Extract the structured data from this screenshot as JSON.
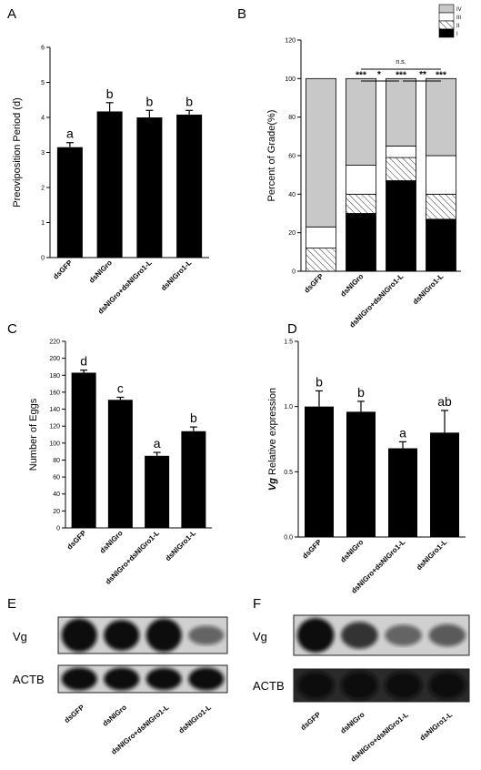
{
  "chart_data": [
    {
      "panel": "A",
      "type": "bar",
      "ylabel": "Preoviposition Period (d)",
      "ylim": [
        0,
        6
      ],
      "yticks": [
        "0",
        "1",
        "2",
        "3",
        "4",
        "5",
        "6"
      ],
      "categories": [
        "dsGFP",
        "dsNlGro",
        "dsNlGro+dsNlGro1-L",
        "dsNlGro1-L"
      ],
      "values": [
        3.15,
        4.17,
        4.0,
        4.08
      ],
      "errors": [
        0.13,
        0.25,
        0.2,
        0.12
      ],
      "letters": [
        "a",
        "b",
        "b",
        "b"
      ],
      "color": "#000000"
    },
    {
      "panel": "B",
      "type": "bar",
      "stacked": true,
      "ylabel": "Percent of Grade(%)",
      "ylim": [
        0,
        120
      ],
      "yticks": [
        "0",
        "20",
        "40",
        "60",
        "80",
        "100",
        "120"
      ],
      "categories": [
        "dsGFP",
        "dsNlGro",
        "dsNlGro+dsNlGro1-L",
        "dsNlGro1-L"
      ],
      "series": [
        {
          "name": "I",
          "values": [
            0,
            30,
            47,
            27
          ],
          "fill": "#000000"
        },
        {
          "name": "II",
          "values": [
            12,
            10,
            12,
            13
          ],
          "fill": "hatch"
        },
        {
          "name": "III",
          "values": [
            11,
            15,
            6,
            20
          ],
          "fill": "#ffffff"
        },
        {
          "name": "IV",
          "values": [
            77,
            45,
            35,
            40
          ],
          "fill": "#c8c8c8"
        }
      ],
      "legend": [
        "IV",
        "III",
        "II",
        "I"
      ],
      "stars": [
        "***",
        "***",
        "***"
      ],
      "brackets": [
        {
          "label": "n.s.",
          "from": 1,
          "to": 3
        },
        {
          "label": "*",
          "from": 1,
          "to": 2
        },
        {
          "label": "**",
          "from": 2,
          "to": 3
        }
      ]
    },
    {
      "panel": "C",
      "type": "bar",
      "ylabel": "Number of Eggs",
      "ylim": [
        0,
        220
      ],
      "yticks": [
        "0",
        "20",
        "40",
        "60",
        "80",
        "100",
        "120",
        "140",
        "160",
        "180",
        "200",
        "220"
      ],
      "categories": [
        "dsGFP",
        "dsNlGro",
        "dsNlGro+dsNlGro1-L",
        "dsNlGro1-L"
      ],
      "values": [
        183,
        151,
        85,
        114
      ],
      "errors": [
        3,
        3,
        4,
        5
      ],
      "letters": [
        "d",
        "c",
        "a",
        "b"
      ],
      "color": "#000000"
    },
    {
      "panel": "D",
      "type": "bar",
      "ylabel_italic": "Vg",
      "ylabel": " Relative expression",
      "ylim": [
        0,
        1.5
      ],
      "yticks": [
        "0.0",
        "0.5",
        "1.0",
        "1.5"
      ],
      "categories": [
        "dsGFP",
        "dsNlGro",
        "dsNlGro+dsNlGro1-L",
        "dsNlGro1-L"
      ],
      "values": [
        1.0,
        0.96,
        0.68,
        0.8
      ],
      "errors": [
        0.12,
        0.08,
        0.05,
        0.17
      ],
      "letters": [
        "b",
        "b",
        "a",
        "ab"
      ],
      "color": "#000000"
    }
  ],
  "blots": [
    {
      "panel": "E",
      "rows": [
        "Vg",
        "ACTB"
      ],
      "lanes": [
        "dsGFP",
        "dsNlGro",
        "dsNlGro+dsNlGro1-L",
        "dsNlGro1-L"
      ],
      "intensity": {
        "Vg": [
          1.0,
          0.85,
          1.0,
          0.3
        ],
        "ACTB": [
          0.85,
          0.85,
          0.8,
          0.85
        ]
      }
    },
    {
      "panel": "F",
      "rows": [
        "Vg",
        "ACTB"
      ],
      "lanes": [
        "dsGFP",
        "dsNlGro",
        "dsNlGro+dsNlGro1-L",
        "dsNlGro1-L"
      ],
      "intensity": {
        "Vg": [
          0.9,
          0.55,
          0.3,
          0.35
        ],
        "ACTB": [
          0.85,
          0.9,
          0.85,
          0.85
        ]
      }
    }
  ],
  "colors": {
    "bar": "#000000",
    "grade4": "#c8c8c8",
    "blot_bg": "#d0d0d0",
    "blot_band": "#0a0a0a"
  }
}
